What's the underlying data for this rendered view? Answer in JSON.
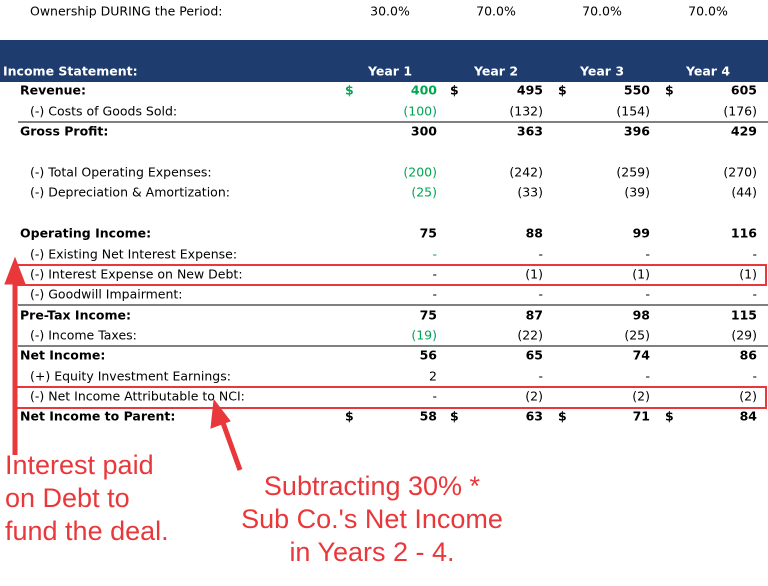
{
  "ownership": {
    "label": "Ownership DURING the Period:",
    "values": [
      "30.0%",
      "70.0%",
      "70.0%",
      "70.0%"
    ]
  },
  "table": {
    "title": "Income Statement:",
    "columns": [
      "Year 1",
      "Year 2",
      "Year 3",
      "Year 4"
    ],
    "rows": [
      {
        "label": "Revenue:",
        "currency": "$",
        "values": [
          "400",
          "495",
          "550",
          "605"
        ]
      },
      {
        "label": "(-) Costs of Goods Sold:",
        "values": [
          "(100)",
          "(132)",
          "(154)",
          "(176)"
        ]
      },
      {
        "label": "Gross Profit:",
        "values": [
          "300",
          "363",
          "396",
          "429"
        ]
      },
      {
        "label": "(-) Total Operating Expenses:",
        "values": [
          "(200)",
          "(242)",
          "(259)",
          "(270)"
        ]
      },
      {
        "label": "(-) Depreciation & Amortization:",
        "values": [
          "(25)",
          "(33)",
          "(39)",
          "(44)"
        ]
      },
      {
        "label": "Operating Income:",
        "values": [
          "75",
          "88",
          "99",
          "116"
        ]
      },
      {
        "label": "(-) Existing Net Interest Expense:",
        "values": [
          "-",
          "-",
          "-",
          "-"
        ]
      },
      {
        "label": "(-) Interest Expense on New Debt:",
        "values": [
          "-",
          "(1)",
          "(1)",
          "(1)"
        ]
      },
      {
        "label": "(-) Goodwill Impairment:",
        "values": [
          "-",
          "-",
          "-",
          "-"
        ]
      },
      {
        "label": "Pre-Tax Income:",
        "values": [
          "75",
          "87",
          "98",
          "115"
        ]
      },
      {
        "label": "(-) Income Taxes:",
        "values": [
          "(19)",
          "(22)",
          "(25)",
          "(29)"
        ]
      },
      {
        "label": "Net Income:",
        "values": [
          "56",
          "65",
          "74",
          "86"
        ]
      },
      {
        "label": "(+) Equity Investment Earnings:",
        "values": [
          "2",
          "-",
          "-",
          "-"
        ]
      },
      {
        "label": "(-) Net Income Attributable to NCI:",
        "values": [
          "-",
          "(2)",
          "(2)",
          "(2)"
        ]
      },
      {
        "label": "Net Income to Parent:",
        "currency": "$",
        "values": [
          "58",
          "63",
          "71",
          "84"
        ]
      }
    ]
  },
  "annotations": [
    {
      "lines": [
        "Interest paid",
        "on Debt to",
        "fund the deal."
      ]
    },
    {
      "lines": [
        "Subtracting 30% *",
        "Sub Co.'s Net Income",
        "in Years 2 - 4."
      ]
    }
  ]
}
